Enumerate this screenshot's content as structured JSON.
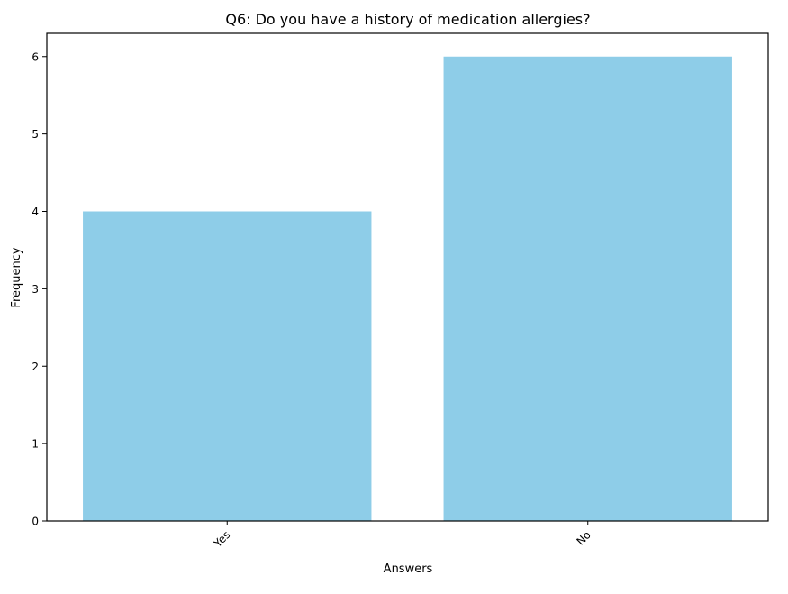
{
  "chart_data": {
    "type": "bar",
    "title": "Q6: Do you have a history of medication allergies?",
    "xlabel": "Answers",
    "ylabel": "Frequency",
    "categories": [
      "Yes",
      "No"
    ],
    "values": [
      4,
      6
    ],
    "ylim": [
      0,
      6.3
    ],
    "yticks": [
      "0",
      "1",
      "2",
      "3",
      "4",
      "5",
      "6"
    ],
    "grid": false,
    "bar_color": "#8ecde8"
  }
}
